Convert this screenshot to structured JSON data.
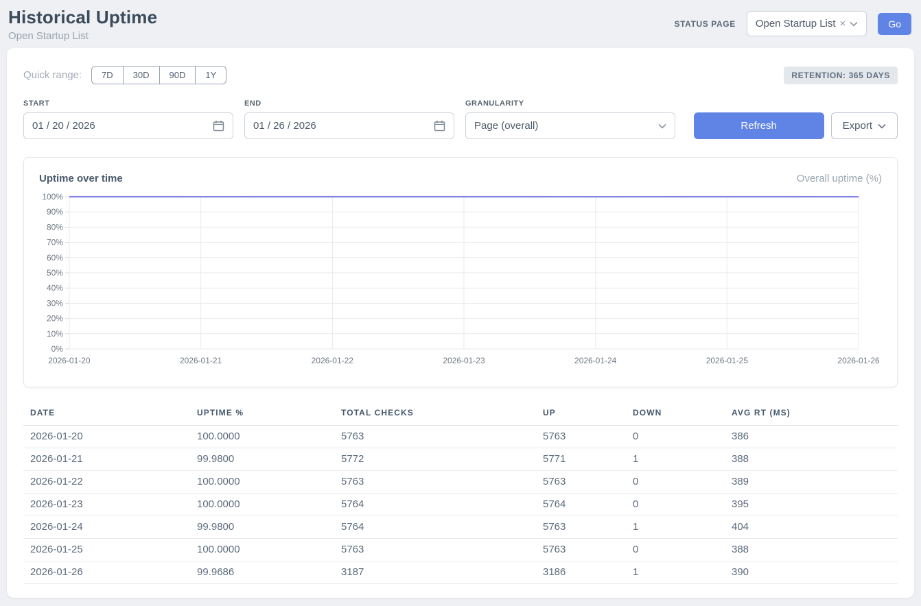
{
  "colors": {
    "accent_blue": "#5f84e6",
    "line_purple": "#8284e6",
    "grid": "#e7eaee",
    "tick_text": "#6d7883",
    "page_bg": "#eef0f3"
  },
  "header": {
    "title": "Historical Uptime",
    "subtitle": "Open Startup List",
    "status_page_label": "STATUS PAGE",
    "status_page_value": "Open Startup List",
    "clear_glyph": "×",
    "go_label": "Go"
  },
  "controls": {
    "quick_range_label": "Quick range:",
    "quick_ranges": [
      "7D",
      "30D",
      "90D",
      "1Y"
    ],
    "retention_badge": "RETENTION: 365 DAYS",
    "start_label": "START",
    "start_value": "01 / 20 / 2026",
    "end_label": "END",
    "end_value": "01 / 26 / 2026",
    "granularity_label": "GRANULARITY",
    "granularity_value": "Page (overall)",
    "refresh_label": "Refresh",
    "export_label": "Export"
  },
  "chart": {
    "title": "Uptime over time",
    "legend": "Overall uptime (%)"
  },
  "chart_data": {
    "type": "line",
    "title": "Uptime over time",
    "x": [
      "2026-01-20",
      "2026-01-21",
      "2026-01-22",
      "2026-01-23",
      "2026-01-24",
      "2026-01-25",
      "2026-01-26"
    ],
    "series": [
      {
        "name": "Overall uptime (%)",
        "values": [
          100.0,
          99.98,
          100.0,
          100.0,
          99.98,
          100.0,
          99.9686
        ]
      }
    ],
    "xlabel": "",
    "ylabel": "",
    "ylim": [
      0,
      100
    ],
    "ytick_step": 10,
    "ytick_suffix": "%",
    "grid": true,
    "legend_position": "top-right",
    "line_color": "#8284e6"
  },
  "table": {
    "columns": [
      "DATE",
      "UPTIME %",
      "TOTAL CHECKS",
      "UP",
      "DOWN",
      "AVG RT (MS)"
    ],
    "rows": [
      [
        "2026-01-20",
        "100.0000",
        "5763",
        "5763",
        "0",
        "386"
      ],
      [
        "2026-01-21",
        "99.9800",
        "5772",
        "5771",
        "1",
        "388"
      ],
      [
        "2026-01-22",
        "100.0000",
        "5763",
        "5763",
        "0",
        "389"
      ],
      [
        "2026-01-23",
        "100.0000",
        "5764",
        "5764",
        "0",
        "395"
      ],
      [
        "2026-01-24",
        "99.9800",
        "5764",
        "5763",
        "1",
        "404"
      ],
      [
        "2026-01-25",
        "100.0000",
        "5763",
        "5763",
        "0",
        "388"
      ],
      [
        "2026-01-26",
        "99.9686",
        "3187",
        "3186",
        "1",
        "390"
      ]
    ]
  }
}
